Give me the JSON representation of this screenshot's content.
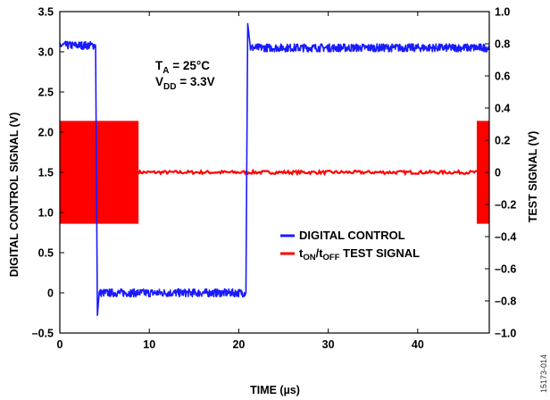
{
  "chart_data": {
    "type": "line",
    "x_axis": {
      "label": "TIME (µs)",
      "range": [
        0,
        48
      ],
      "ticks": [
        0,
        10,
        20,
        30,
        40
      ],
      "tick_labels": [
        "0",
        "10",
        "20",
        "30",
        "40"
      ]
    },
    "y_left": {
      "label": "DIGITAL CONTROL SIGNAL (V)",
      "range": [
        -0.5,
        3.5
      ],
      "ticks": [
        -0.5,
        0,
        0.5,
        1.0,
        1.5,
        2.0,
        2.5,
        3.0,
        3.5
      ],
      "tick_labels": [
        "–0.5",
        "0",
        "0.5",
        "1.0",
        "1.5",
        "2.0",
        "2.5",
        "3.0",
        "3.5"
      ]
    },
    "y_right": {
      "label": "TEST SIGNAL (V)",
      "range": [
        -1.0,
        1.0
      ],
      "ticks": [
        -1.0,
        -0.8,
        -0.6,
        -0.4,
        -0.2,
        0,
        0.2,
        0.4,
        0.6,
        0.8,
        1.0
      ],
      "tick_labels": [
        "–1.0",
        "–0.8",
        "–0.6",
        "–0.4",
        "–0.2",
        "0",
        "0.2",
        "0.4",
        "0.6",
        "0.8",
        "1.0"
      ]
    },
    "grid": false,
    "legend_position": "center-right",
    "series": [
      {
        "name": "DIGITAL CONTROL",
        "axis": "left",
        "color": "#1a1aff",
        "noise_amplitude": 0.05,
        "x": [
          0,
          4.0,
          4.2,
          4.4,
          20.8,
          21.0,
          21.3,
          48
        ],
        "y": [
          3.08,
          3.08,
          -0.28,
          0.0,
          0.0,
          3.35,
          3.05,
          3.05
        ]
      },
      {
        "name": "TEST SIGNAL",
        "axis": "right",
        "color": "#ff0000",
        "segments": [
          {
            "x": [
              0,
              8.8
            ],
            "min": -0.32,
            "max": 0.32,
            "style": "band"
          },
          {
            "x": [
              8.8,
              46.6
            ],
            "value": 0,
            "noise_amplitude": 0.01,
            "style": "line"
          },
          {
            "x": [
              46.6,
              48
            ],
            "min": -0.32,
            "max": 0.32,
            "style": "band"
          }
        ]
      }
    ],
    "annotations": {
      "ta_main": "T",
      "ta_sub": "A",
      "ta_value": " = 25°C",
      "vdd_main": "V",
      "vdd_sub": "DD",
      "vdd_value": " = 3.3V"
    },
    "legend": {
      "digital_label": "DIGITAL CONTROL",
      "test_t1": "t",
      "test_sub1": "ON",
      "test_slash": "/t",
      "test_sub2": "OFF",
      "test_rest": " TEST SIGNAL"
    },
    "figure_id": "15173-014"
  }
}
